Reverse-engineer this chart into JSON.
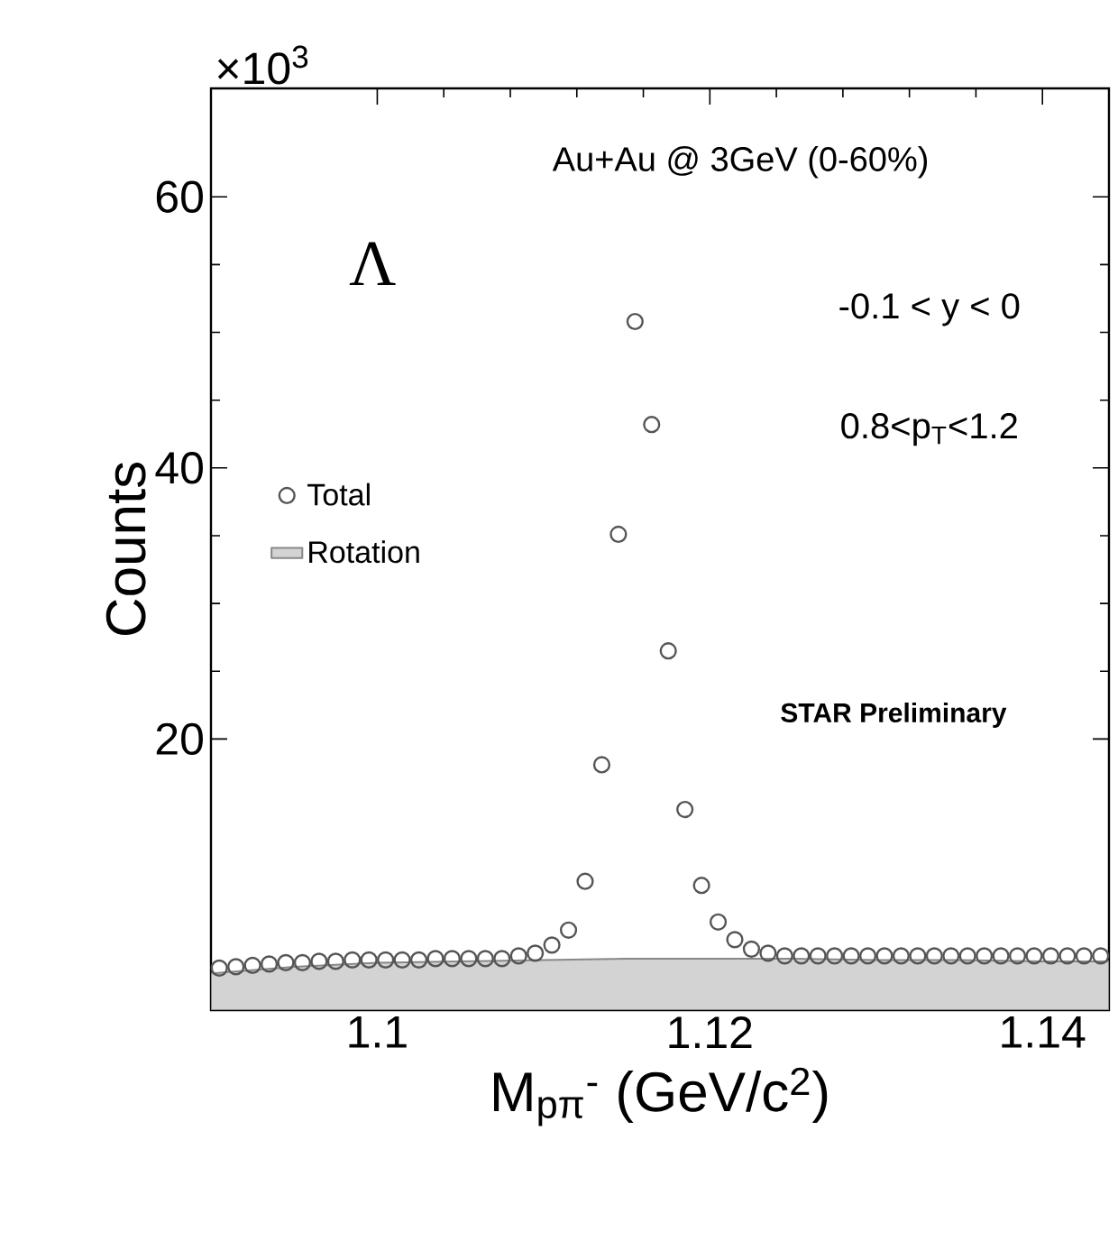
{
  "chart_data": {
    "type": "scatter",
    "xlabel": "M$_{pπ}$$^{-}$ (GeV/c$^{2}$)",
    "ylabel": "Counts",
    "xlim": [
      1.09,
      1.144
    ],
    "ylim": [
      0,
      68
    ],
    "xticks": [
      1.1,
      1.12,
      1.14
    ],
    "yticks": [
      20,
      40,
      60
    ],
    "grid": false,
    "legend": "left",
    "annotations": [
      "×10$^{3}$",
      "Au+Au @ 3GeV (0-60%)",
      "Λ",
      "-0.1 < y < 0",
      "0.8<p$_{T}$<1.2",
      "STAR Preliminary"
    ],
    "series": [
      {
        "name": "Total",
        "marker": "circle",
        "color": "#555555",
        "x": [
          1.0905,
          1.0915,
          1.0925,
          1.0935,
          1.0945,
          1.0955,
          1.0965,
          1.0975,
          1.0985,
          1.0995,
          1.1005,
          1.1015,
          1.1025,
          1.1035,
          1.1045,
          1.1055,
          1.1065,
          1.1075,
          1.1085,
          1.1095,
          1.1105,
          1.1115,
          1.1125,
          1.1135,
          1.1145,
          1.1155,
          1.1165,
          1.1175,
          1.1185,
          1.1195,
          1.1205,
          1.1215,
          1.1225,
          1.1235,
          1.1245,
          1.1255,
          1.1265,
          1.1275,
          1.1285,
          1.1295,
          1.1305,
          1.1315,
          1.1325,
          1.1335,
          1.1345,
          1.1355,
          1.1365,
          1.1375,
          1.1385,
          1.1395,
          1.1405,
          1.1415,
          1.1425,
          1.1435
        ],
        "values": [
          3.1,
          3.2,
          3.3,
          3.4,
          3.5,
          3.5,
          3.6,
          3.6,
          3.7,
          3.7,
          3.7,
          3.7,
          3.7,
          3.8,
          3.8,
          3.8,
          3.8,
          3.8,
          4.0,
          4.2,
          4.8,
          5.9,
          9.5,
          18.1,
          35.1,
          50.8,
          43.2,
          26.5,
          14.8,
          9.2,
          6.5,
          5.2,
          4.5,
          4.2,
          4.0,
          4.0,
          4.0,
          4.0,
          4.0,
          4.0,
          4.0,
          4.0,
          4.0,
          4.0,
          4.0,
          4.0,
          4.0,
          4.0,
          4.0,
          4.0,
          4.0,
          4.0,
          4.0,
          4.0
        ]
      },
      {
        "name": "Rotation",
        "type": "area",
        "color": "#d3d3d3",
        "x": [
          1.09,
          1.095,
          1.1,
          1.105,
          1.11,
          1.115,
          1.12,
          1.125,
          1.13,
          1.135,
          1.14,
          1.144
        ],
        "values": [
          2.7,
          3.2,
          3.5,
          3.6,
          3.7,
          3.8,
          3.8,
          3.8,
          3.7,
          3.7,
          3.6,
          3.6
        ]
      }
    ]
  }
}
